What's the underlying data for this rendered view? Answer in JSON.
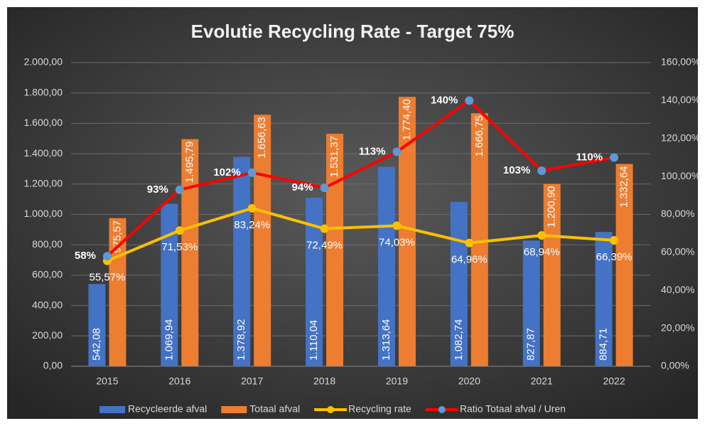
{
  "chart_data": {
    "type": "bar",
    "title": "Evolutie Recycling Rate - Target 75%",
    "categories": [
      "2015",
      "2016",
      "2017",
      "2018",
      "2019",
      "2020",
      "2021",
      "2022"
    ],
    "series": [
      {
        "name": "Recycleerde afval",
        "type": "bar",
        "color": "#4472c4",
        "values": [
          542.08,
          1069.94,
          1378.92,
          1110.04,
          1313.64,
          1082.74,
          827.87,
          884.71
        ],
        "value_labels": [
          "542,08",
          "1.069,94",
          "1.378,92",
          "1.110,04",
          "1.313,64",
          "1.082,74",
          "827,87",
          "884,71"
        ]
      },
      {
        "name": "Totaal afval",
        "type": "bar",
        "color": "#ed7d31",
        "values": [
          975.57,
          1495.79,
          1656.63,
          1531.37,
          1774.4,
          1666.75,
          1200.9,
          1332.64
        ],
        "value_labels": [
          "975,57",
          "1.495,79",
          "1.656,63",
          "1.531,37",
          "1.774,40",
          "1.666,75",
          "1.200,90",
          "1.332,64"
        ]
      },
      {
        "name": "Recycling rate",
        "type": "line",
        "axis": "y2",
        "color": "#ffc000",
        "marker_color": "#ffc000",
        "values": [
          55.57,
          71.53,
          83.24,
          72.49,
          74.03,
          64.96,
          68.94,
          66.39
        ],
        "value_labels": [
          "55,57%",
          "71,53%",
          "83,24%",
          "72,49%",
          "74,03%",
          "64,96%",
          "68,94%",
          "66,39%"
        ]
      },
      {
        "name": "Ratio Totaal afval / Uren",
        "type": "line",
        "axis": "y2",
        "color": "#ff0000",
        "marker_color": "#5b9bd5",
        "values": [
          58,
          93,
          102,
          94,
          113,
          140,
          103,
          110
        ],
        "value_labels": [
          "58%",
          "93%",
          "102%",
          "94%",
          "113%",
          "140%",
          "103%",
          "110%"
        ]
      }
    ],
    "ylim": [
      0,
      2000
    ],
    "yticks": [
      {
        "value": 0,
        "label": "0,00"
      },
      {
        "value": 200,
        "label": "200,00"
      },
      {
        "value": 400,
        "label": "400,00"
      },
      {
        "value": 600,
        "label": "600,00"
      },
      {
        "value": 800,
        "label": "800,00"
      },
      {
        "value": 1000,
        "label": "1.000,00"
      },
      {
        "value": 1200,
        "label": "1.200,00"
      },
      {
        "value": 1400,
        "label": "1.400,00"
      },
      {
        "value": 1600,
        "label": "1.600,00"
      },
      {
        "value": 1800,
        "label": "1.800,00"
      },
      {
        "value": 2000,
        "label": "2.000,00"
      }
    ],
    "y2lim": [
      0,
      160
    ],
    "y2ticks": [
      {
        "value": 0,
        "label": "0,00%"
      },
      {
        "value": 20,
        "label": "20,00%"
      },
      {
        "value": 40,
        "label": "40,00%"
      },
      {
        "value": 60,
        "label": "60,00%"
      },
      {
        "value": 80,
        "label": "80,00%"
      },
      {
        "value": 100,
        "label": "100,00%"
      },
      {
        "value": 120,
        "label": "120,00%"
      },
      {
        "value": 140,
        "label": "140,00%"
      },
      {
        "value": 160,
        "label": "160,00%"
      }
    ],
    "grid": true,
    "legend": "bottom"
  }
}
